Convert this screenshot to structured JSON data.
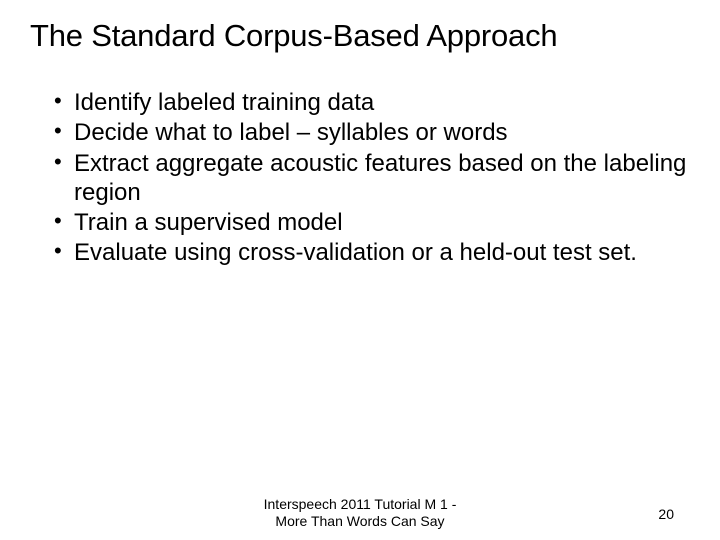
{
  "slide": {
    "title": "The Standard Corpus-Based Approach",
    "bullets": [
      "Identify labeled training data",
      "Decide what to label – syllables or words",
      "Extract aggregate acoustic features based on the labeling region",
      "Train a supervised model",
      "Evaluate using cross-validation or a held-out test set."
    ],
    "footer_line1": "Interspeech 2011 Tutorial M 1 -",
    "footer_line2": "More Than Words Can Say",
    "page_number": "20"
  },
  "style": {
    "background_color": "#ffffff",
    "text_color": "#000000",
    "title_fontsize": 31,
    "bullet_fontsize": 24,
    "footer_fontsize": 14,
    "font_family": "Arial"
  }
}
